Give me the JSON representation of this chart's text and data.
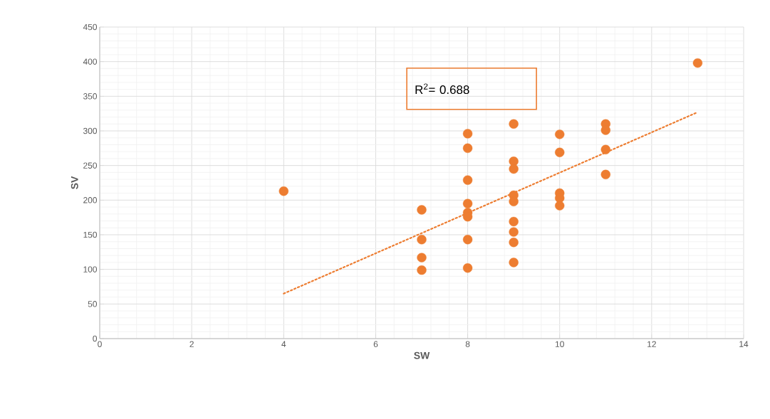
{
  "chart_data": {
    "type": "scatter",
    "xlabel": "SW",
    "ylabel": "SV",
    "annotations": [
      "R$^{2}$= 0.688"
    ],
    "series": [
      {
        "color": "#ed7d31",
        "marker": "circle",
        "x": [
          4,
          7,
          7,
          7,
          7,
          8,
          8,
          8,
          8,
          8,
          8,
          8,
          8,
          9,
          9,
          9,
          9,
          9,
          9,
          9,
          9,
          9,
          10,
          10,
          10,
          10,
          10,
          11,
          11,
          11,
          11,
          13
        ],
        "values": [
          213,
          186,
          143,
          117,
          99,
          296,
          275,
          229,
          195,
          182,
          176,
          143,
          102,
          310,
          256,
          245,
          207,
          198,
          169,
          154,
          139,
          110,
          295,
          269,
          210,
          203,
          192,
          310,
          301,
          273,
          237,
          398
        ]
      },
      {
        "type": "line",
        "color": "#ed7d31",
        "marker": "none",
        "line_style": "dotted",
        "x": [
          4,
          13
        ],
        "values": [
          65,
          327
        ]
      }
    ],
    "xlim": [
      0,
      14
    ],
    "ylim": [
      0,
      450
    ],
    "xticks": [
      0,
      2,
      4,
      6,
      8,
      10,
      12,
      14
    ],
    "yticks": [
      0,
      50,
      100,
      150,
      200,
      250,
      300,
      350,
      400,
      450
    ],
    "grid": true
  }
}
